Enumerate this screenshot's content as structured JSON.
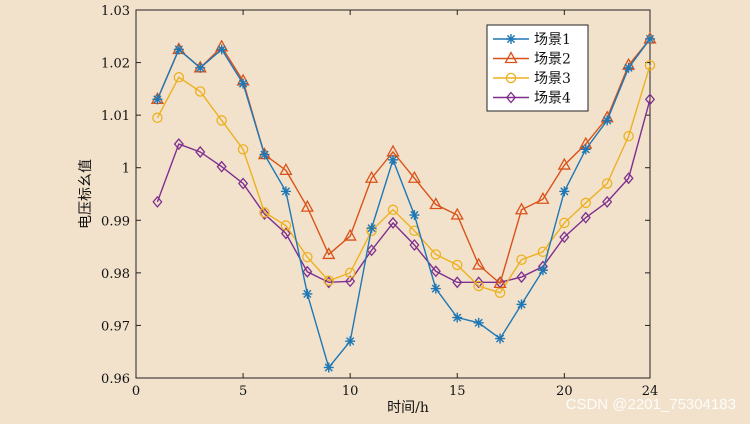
{
  "chart_data": {
    "type": "line",
    "title": "",
    "xlabel": "时间/h",
    "ylabel": "电压标幺值",
    "xlim": [
      0,
      24
    ],
    "ylim": [
      0.96,
      1.03
    ],
    "xticks": [
      "0",
      "5",
      "10",
      "15",
      "20",
      "24"
    ],
    "xtick_values": [
      0,
      5,
      10,
      15,
      20,
      24
    ],
    "yticks": [
      "0.96",
      "0.97",
      "0.98",
      "0.99",
      "1",
      "1.01",
      "1.02",
      "1.03"
    ],
    "ytick_values": [
      0.96,
      0.97,
      0.98,
      0.99,
      1.0,
      1.01,
      1.02,
      1.03
    ],
    "grid": false,
    "legend_position": "top-right",
    "x": [
      1,
      2,
      3,
      4,
      5,
      6,
      7,
      8,
      9,
      10,
      11,
      12,
      13,
      14,
      15,
      16,
      17,
      18,
      19,
      20,
      21,
      22,
      23,
      24
    ],
    "series": [
      {
        "name": "场景1",
        "color": "#1f77b4",
        "marker": "asterisk",
        "values": [
          1.013,
          1.0225,
          1.019,
          1.0225,
          1.016,
          1.0025,
          0.9955,
          0.976,
          0.962,
          0.967,
          0.9885,
          1.0015,
          0.991,
          0.977,
          0.9715,
          0.9705,
          0.9675,
          0.974,
          0.9805,
          0.9955,
          1.0035,
          1.009,
          1.019,
          1.0245
        ]
      },
      {
        "name": "场景2",
        "color": "#d95319",
        "marker": "triangle",
        "values": [
          1.013,
          1.0225,
          1.019,
          1.023,
          1.0165,
          1.0025,
          0.9995,
          0.9925,
          0.9835,
          0.987,
          0.998,
          1.003,
          0.998,
          0.993,
          0.991,
          0.9815,
          0.978,
          0.992,
          0.994,
          1.0005,
          1.0045,
          1.0095,
          1.0195,
          1.0245
        ]
      },
      {
        "name": "场景3",
        "color": "#edb120",
        "marker": "circle",
        "values": [
          1.0095,
          1.0172,
          1.0145,
          1.009,
          1.0035,
          0.9915,
          0.989,
          0.983,
          0.9785,
          0.98,
          0.988,
          0.992,
          0.988,
          0.9835,
          0.9815,
          0.9775,
          0.9762,
          0.9825,
          0.984,
          0.9895,
          0.9933,
          0.997,
          1.006,
          1.0195
        ]
      },
      {
        "name": "场景4",
        "color": "#7e2f8e",
        "marker": "diamond",
        "values": [
          0.9935,
          1.0045,
          1.003,
          1.0002,
          0.997,
          0.9912,
          0.9875,
          0.9802,
          0.9782,
          0.9784,
          0.9843,
          0.9895,
          0.9853,
          0.9803,
          0.9782,
          0.9782,
          0.9782,
          0.9792,
          0.9812,
          0.9868,
          0.9905,
          0.9935,
          0.998,
          1.013
        ]
      }
    ]
  },
  "watermark": "CSDN @2201_75304183"
}
